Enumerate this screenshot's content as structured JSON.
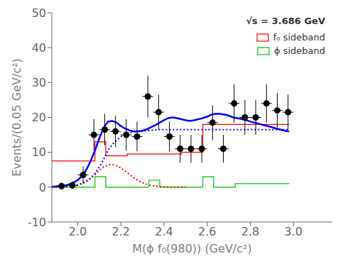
{
  "chart_data": {
    "type": "line",
    "xlabel": "M(ϕ f₀(980)) (GeV/c²)",
    "ylabel": "Events/(0.05 GeV/c²)",
    "annotation": "√s = 3.686 GeV",
    "xlim": [
      1.88,
      3.18
    ],
    "ylim": [
      -10,
      50
    ],
    "xticks": [
      {
        "value": 2,
        "label": "2.0"
      },
      2.2,
      2.4,
      2.6,
      2.8,
      {
        "value": 3,
        "label": "3.0"
      }
    ],
    "yticks": [
      -10,
      0,
      10,
      20,
      30,
      40,
      50
    ],
    "grid": false,
    "legend": "upper right",
    "series": [
      {
        "name": "f₀ sideband",
        "type": "step",
        "color": "#ff0000",
        "bins": [
          1.88,
          1.93,
          1.98,
          2.03,
          2.08,
          2.13,
          2.18,
          2.23,
          2.28,
          2.33,
          2.38,
          2.43,
          2.48,
          2.53,
          2.58,
          2.63,
          2.68,
          2.73,
          2.78,
          2.83,
          2.88,
          2.93,
          2.98
        ],
        "values": [
          7.5,
          7.5,
          7.5,
          7.5,
          13.0,
          9.0,
          9.0,
          9.5,
          9.5,
          9.5,
          9.5,
          9.5,
          10.0,
          10.0,
          18.0,
          18.0,
          18.0,
          18.0,
          18.0,
          18.0,
          18.0,
          18.0
        ]
      },
      {
        "name": "ϕ sideband",
        "type": "step",
        "color": "#00bb00",
        "bins": [
          1.88,
          1.93,
          1.98,
          2.03,
          2.08,
          2.13,
          2.18,
          2.23,
          2.28,
          2.33,
          2.38,
          2.43,
          2.48,
          2.53,
          2.58,
          2.63,
          2.68,
          2.73,
          2.78,
          2.83,
          2.88,
          2.93,
          2.98
        ],
        "values": [
          0.0,
          0.0,
          0.0,
          0.0,
          3.0,
          0.0,
          0.0,
          0.0,
          0.0,
          2.0,
          0.0,
          0.0,
          0.0,
          0.0,
          3.0,
          0.0,
          0.0,
          1.0,
          1.0,
          1.0,
          1.0,
          1.0
        ]
      },
      {
        "type": "line",
        "color": "#ff0000",
        "line_style": "dotted",
        "x": [
          1.88,
          1.9,
          1.92,
          1.94,
          1.96,
          1.98,
          2.0,
          2.02,
          2.04,
          2.06,
          2.08,
          2.1,
          2.12,
          2.14,
          2.16,
          2.18,
          2.2,
          2.22,
          2.24,
          2.26,
          2.28,
          2.3,
          2.32,
          2.34,
          2.36,
          2.38,
          2.4,
          2.42,
          2.44,
          2.46,
          2.48,
          2.5
        ],
        "values": [
          0.02,
          0.04,
          0.07,
          0.12,
          0.2,
          0.35,
          0.6,
          1.0,
          1.6,
          2.5,
          3.5,
          4.8,
          5.8,
          6.4,
          6.5,
          6.2,
          5.5,
          4.6,
          3.6,
          2.7,
          1.9,
          1.3,
          0.85,
          0.52,
          0.3,
          0.18,
          0.1,
          0.06,
          0.03,
          0.02,
          0.01,
          0.0
        ]
      },
      {
        "type": "line",
        "color": "#0000ff",
        "line_style": "dotted",
        "x": [
          1.88,
          1.9,
          1.92,
          1.94,
          1.96,
          1.98,
          2.0,
          2.02,
          2.04,
          2.06,
          2.08,
          2.1,
          2.12,
          2.14,
          2.16,
          2.18,
          2.2,
          2.22,
          2.24,
          2.26,
          2.28,
          2.3,
          2.32,
          2.34,
          2.36,
          2.38,
          2.4,
          2.42,
          2.44,
          2.46,
          2.48,
          2.5,
          2.52,
          2.54,
          2.56,
          2.58,
          2.6,
          2.62,
          2.64,
          2.66,
          2.68,
          2.7,
          2.72,
          2.74,
          2.76,
          2.78,
          2.8,
          2.82,
          2.84,
          2.86,
          2.88,
          2.9,
          2.92,
          2.94,
          2.96,
          2.98
        ],
        "values": [
          0.05,
          0.08,
          0.12,
          0.18,
          0.28,
          0.45,
          0.7,
          1.1,
          1.7,
          2.6,
          4.0,
          5.8,
          8.0,
          10.5,
          12.2,
          13.5,
          14.5,
          15.2,
          15.6,
          15.8,
          16.0,
          16.1,
          16.2,
          16.3,
          16.4,
          16.5,
          16.5,
          16.5,
          16.5,
          16.5,
          16.5,
          16.5,
          16.5,
          16.5,
          16.5,
          16.5,
          16.5,
          16.5,
          16.5,
          16.5,
          16.5,
          16.5,
          16.5,
          16.5,
          16.5,
          16.5,
          16.5,
          16.5,
          16.5,
          16.5,
          16.5,
          16.5,
          16.5,
          16.5,
          16.5,
          16.5
        ]
      },
      {
        "type": "line",
        "color": "#0000ff",
        "line_style": "solid",
        "x": [
          1.88,
          1.9,
          1.92,
          1.94,
          1.96,
          1.98,
          2.0,
          2.02,
          2.04,
          2.06,
          2.08,
          2.1,
          2.12,
          2.14,
          2.16,
          2.18,
          2.2,
          2.22,
          2.24,
          2.26,
          2.28,
          2.3,
          2.32,
          2.34,
          2.36,
          2.38,
          2.4,
          2.42,
          2.44,
          2.46,
          2.48,
          2.5,
          2.52,
          2.54,
          2.56,
          2.58,
          2.6,
          2.62,
          2.64,
          2.66,
          2.68,
          2.7,
          2.72,
          2.74,
          2.76,
          2.78,
          2.8,
          2.82,
          2.84,
          2.86,
          2.88,
          2.9,
          2.92,
          2.94,
          2.96,
          2.98
        ],
        "values": [
          0.1,
          0.2,
          0.3,
          0.5,
          0.8,
          1.3,
          2.0,
          3.2,
          5.0,
          7.5,
          10.5,
          14.0,
          17.0,
          18.8,
          19.0,
          18.5,
          17.5,
          16.8,
          16.3,
          16.0,
          16.0,
          16.2,
          16.6,
          17.2,
          17.8,
          18.5,
          19.2,
          19.8,
          20.0,
          19.8,
          19.5,
          19.2,
          19.0,
          19.2,
          19.5,
          19.8,
          20.2,
          20.8,
          21.0,
          21.0,
          20.8,
          20.5,
          20.0,
          19.8,
          19.5,
          19.2,
          18.8,
          18.5,
          18.2,
          17.8,
          17.5,
          17.2,
          16.8,
          16.5,
          16.2,
          16.0
        ]
      },
      {
        "type": "scatter",
        "color": "#000000",
        "marker": "o",
        "x": [
          1.925,
          1.975,
          2.025,
          2.075,
          2.125,
          2.175,
          2.225,
          2.275,
          2.325,
          2.375,
          2.425,
          2.475,
          2.525,
          2.575,
          2.625,
          2.675,
          2.725,
          2.775,
          2.825,
          2.875,
          2.925,
          2.975
        ],
        "values": [
          0.3,
          0.5,
          3.5,
          15.0,
          16.5,
          16.0,
          15.0,
          14.5,
          26.0,
          21.5,
          14.5,
          11.0,
          11.0,
          11.0,
          18.5,
          11.0,
          24.0,
          20.0,
          20.0,
          24.0,
          22.0,
          21.5
        ],
        "yerr": [
          1.0,
          1.0,
          2.5,
          4.5,
          4.5,
          4.5,
          4.5,
          4.2,
          6.0,
          5.0,
          4.3,
          4.0,
          4.0,
          4.0,
          5.0,
          4.0,
          5.5,
          5.0,
          5.0,
          5.5,
          5.0,
          5.0
        ],
        "xerr": 0.025
      }
    ]
  }
}
